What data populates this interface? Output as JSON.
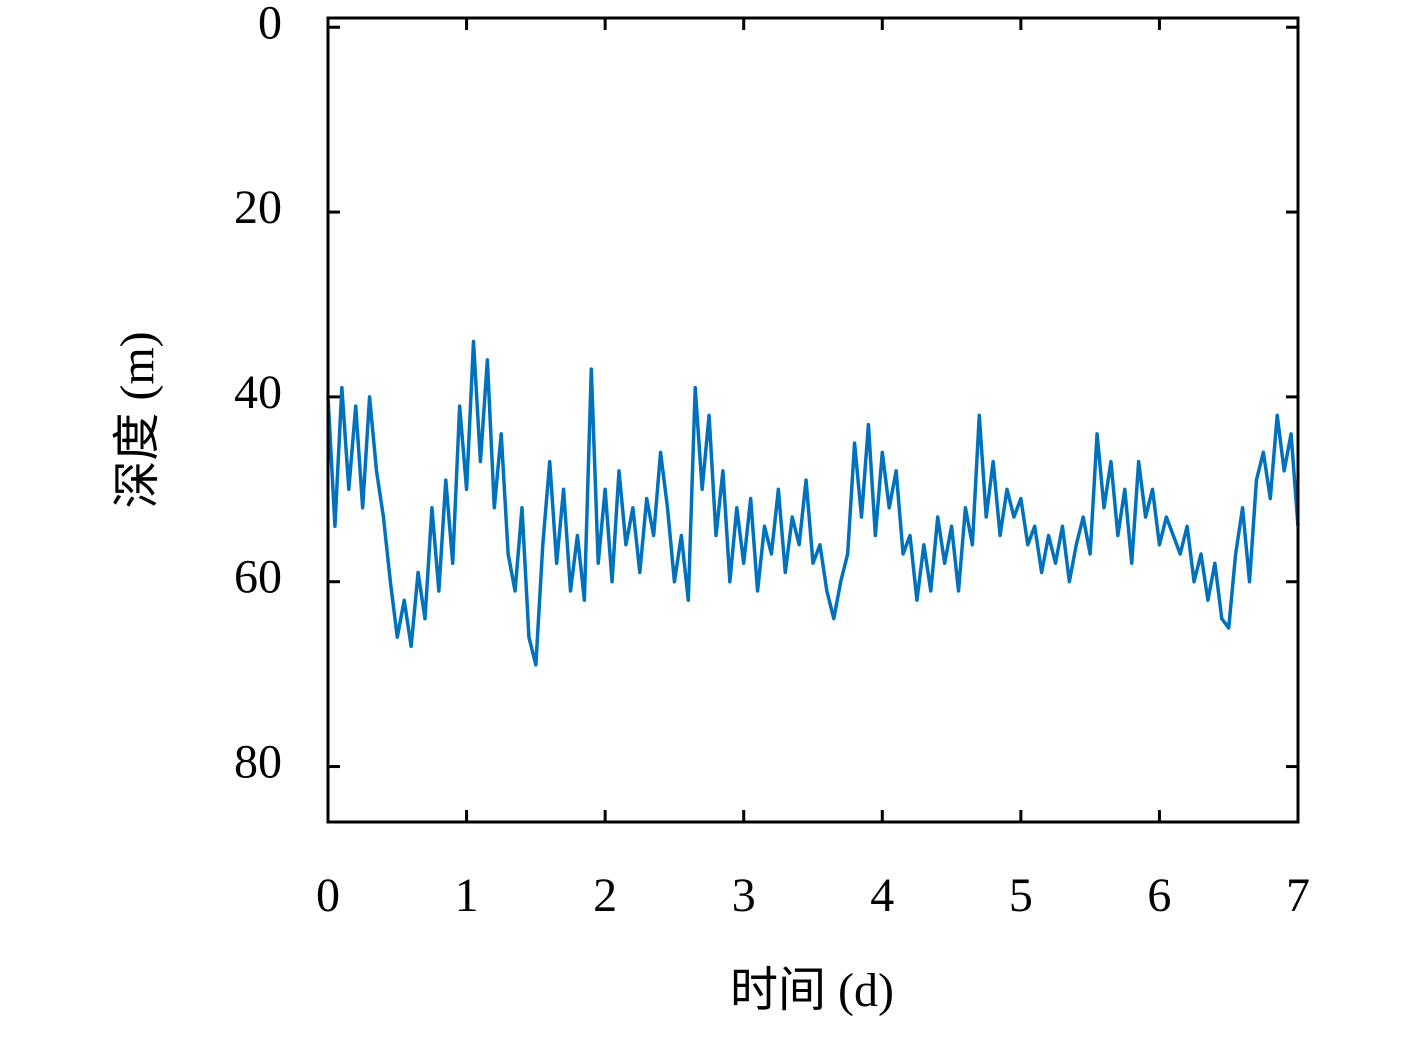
{
  "chart_data": {
    "type": "line",
    "xlabel": "时间 (d)",
    "ylabel": "深度 (m)",
    "xlim": [
      0,
      7
    ],
    "xticks": [
      0,
      1,
      2,
      3,
      4,
      5,
      6,
      7
    ],
    "ylim": [
      -1,
      86
    ],
    "yticks": [
      0,
      20,
      40,
      60,
      80
    ],
    "y_inverted": true,
    "grid": false,
    "x": [
      0,
      0.05,
      0.1,
      0.15,
      0.2,
      0.25,
      0.3,
      0.35,
      0.4,
      0.45,
      0.5,
      0.55,
      0.6,
      0.65,
      0.7,
      0.75,
      0.8,
      0.85,
      0.9,
      0.95,
      1,
      1.05,
      1.1,
      1.15,
      1.2,
      1.25,
      1.3,
      1.35,
      1.4,
      1.45,
      1.5,
      1.55,
      1.6,
      1.65,
      1.7,
      1.75,
      1.8,
      1.85,
      1.9,
      1.95,
      2,
      2.05,
      2.1,
      2.15,
      2.2,
      2.25,
      2.3,
      2.35,
      2.4,
      2.45,
      2.5,
      2.55,
      2.6,
      2.65,
      2.7,
      2.75,
      2.8,
      2.85,
      2.9,
      2.95,
      3,
      3.05,
      3.1,
      3.15,
      3.2,
      3.25,
      3.3,
      3.35,
      3.4,
      3.45,
      3.5,
      3.55,
      3.6,
      3.65,
      3.7,
      3.75,
      3.8,
      3.85,
      3.9,
      3.95,
      4,
      4.05,
      4.1,
      4.15,
      4.2,
      4.25,
      4.3,
      4.35,
      4.4,
      4.45,
      4.5,
      4.55,
      4.6,
      4.65,
      4.7,
      4.75,
      4.8,
      4.85,
      4.9,
      4.95,
      5,
      5.05,
      5.1,
      5.15,
      5.2,
      5.25,
      5.3,
      5.35,
      5.4,
      5.45,
      5.5,
      5.55,
      5.6,
      5.65,
      5.7,
      5.75,
      5.8,
      5.85,
      5.9,
      5.95,
      6,
      6.05,
      6.1,
      6.15,
      6.2,
      6.25,
      6.3,
      6.35,
      6.4,
      6.45,
      6.5,
      6.55,
      6.6,
      6.65,
      6.7,
      6.75,
      6.8,
      6.85,
      6.9,
      6.95,
      7
    ],
    "series": [
      {
        "color": "#0072bd",
        "values": [
          40,
          54,
          39,
          50,
          41,
          52,
          40,
          48,
          53,
          60,
          66,
          62,
          67,
          59,
          64,
          52,
          61,
          49,
          58,
          41,
          50,
          34,
          47,
          36,
          52,
          44,
          57,
          61,
          52,
          66,
          69,
          56,
          47,
          58,
          50,
          61,
          55,
          62,
          37,
          58,
          50,
          60,
          48,
          56,
          52,
          59,
          51,
          55,
          46,
          52,
          60,
          55,
          62,
          39,
          50,
          42,
          55,
          48,
          60,
          52,
          58,
          51,
          61,
          54,
          57,
          50,
          59,
          53,
          56,
          49,
          58,
          56,
          61,
          64,
          60,
          57,
          45,
          53,
          43,
          55,
          46,
          52,
          48,
          57,
          55,
          62,
          56,
          61,
          53,
          58,
          54,
          61,
          52,
          56,
          42,
          53,
          47,
          55,
          50,
          53,
          51,
          56,
          54,
          59,
          55,
          58,
          54,
          60,
          56,
          53,
          57,
          44,
          52,
          47,
          55,
          50,
          58,
          47,
          53,
          50,
          56,
          53,
          55,
          57,
          54,
          60,
          57,
          62,
          58,
          64,
          65,
          57,
          52,
          60,
          49,
          46,
          51,
          42,
          48,
          44,
          54
        ]
      }
    ]
  }
}
